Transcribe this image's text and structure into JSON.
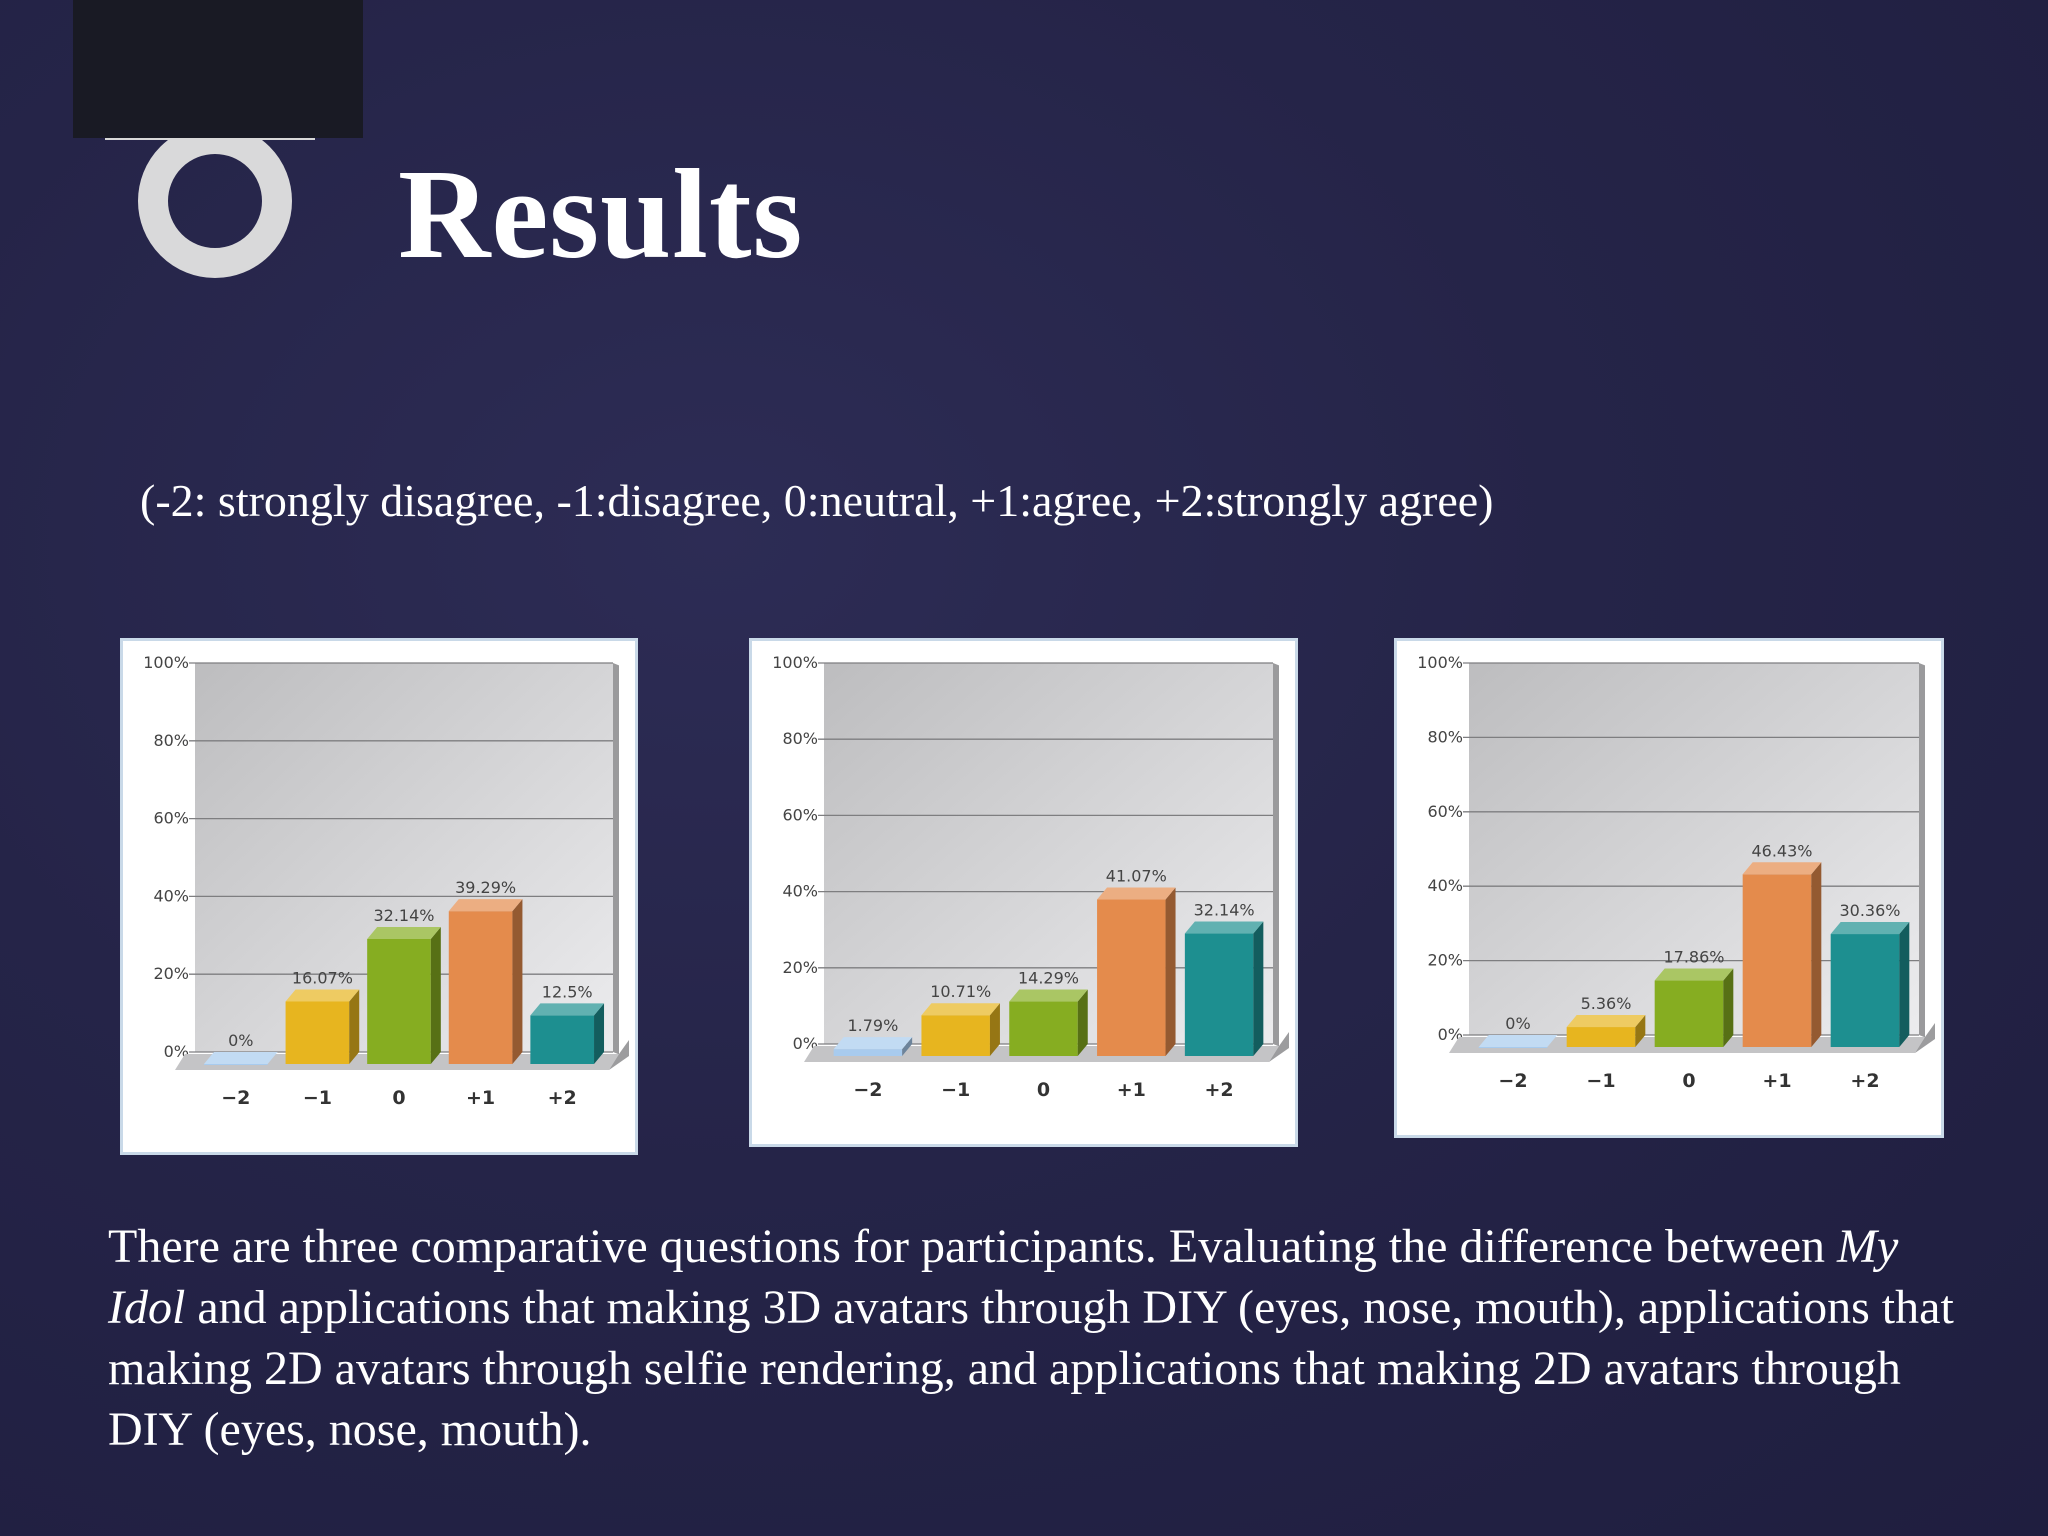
{
  "slide": {
    "title": "Results",
    "scale_note": "(-2: strongly disagree, -1:disagree, 0:neutral, +1:agree, +2:strongly agree)",
    "body_before": "There are three comparative questions for participants. Evaluating the difference between ",
    "body_italic": "My Idol",
    "body_after": " and applications that making 3D avatars through DIY (eyes, nose, mouth), applications that making 2D avatars through selfie rendering, and applications that making 2D avatars through DIY (eyes, nose, mouth)."
  },
  "colors": {
    "bar_colors": [
      "#a8cbee",
      "#e7b51f",
      "#86ad21",
      "#e48b4c",
      "#1d8f90"
    ],
    "plot_background": "#d4d4d6",
    "panel_border": "#c9d9e8"
  },
  "chart_data": [
    {
      "type": "bar",
      "categories": [
        "−2",
        "−1",
        "0",
        "+1",
        "+2"
      ],
      "values": [
        0,
        16.07,
        32.14,
        39.29,
        12.5
      ],
      "value_labels": [
        "0%",
        "16.07%",
        "32.14%",
        "39.29%",
        "12.5%"
      ],
      "yticks": [
        "0%",
        "20%",
        "40%",
        "60%",
        "80%",
        "100%"
      ],
      "ylim": [
        0,
        100
      ],
      "grid": true
    },
    {
      "type": "bar",
      "categories": [
        "−2",
        "−1",
        "0",
        "+1",
        "+2"
      ],
      "values": [
        1.79,
        10.71,
        14.29,
        41.07,
        32.14
      ],
      "value_labels": [
        "1.79%",
        "10.71%",
        "14.29%",
        "41.07%",
        "32.14%"
      ],
      "yticks": [
        "0%",
        "20%",
        "40%",
        "60%",
        "80%",
        "100%"
      ],
      "ylim": [
        0,
        100
      ],
      "grid": true
    },
    {
      "type": "bar",
      "categories": [
        "−2",
        "−1",
        "0",
        "+1",
        "+2"
      ],
      "values": [
        0,
        5.36,
        17.86,
        46.43,
        30.36
      ],
      "value_labels": [
        "0%",
        "5.36%",
        "17.86%",
        "46.43%",
        "30.36%"
      ],
      "yticks": [
        "0%",
        "20%",
        "40%",
        "60%",
        "80%",
        "100%"
      ],
      "ylim": [
        0,
        100
      ],
      "grid": true
    }
  ]
}
